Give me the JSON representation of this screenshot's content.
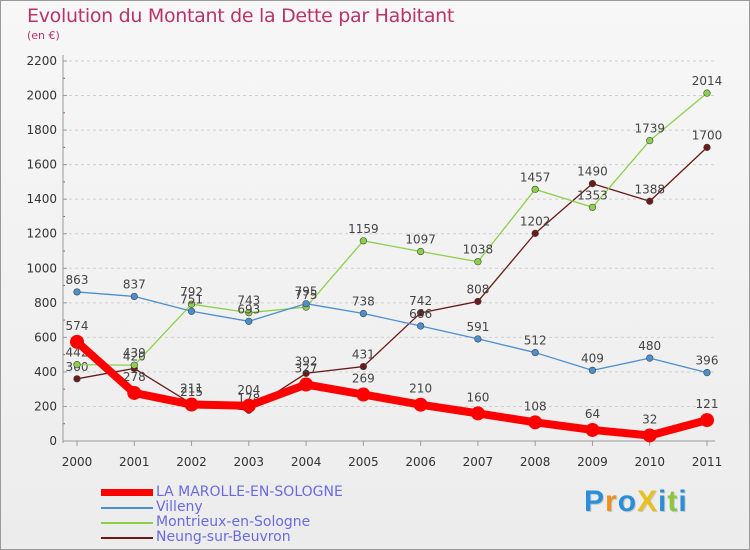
{
  "title": "Evolution du Montant de la Dette par Habitant",
  "subtitle": "(en €)",
  "brand": {
    "text": "ProXiti",
    "letters": [
      "P",
      "r",
      "o",
      "X",
      "i",
      "t",
      "i"
    ],
    "colors": [
      "#2a8fd8",
      "#f09020",
      "#2a8fd8",
      "#e8c020",
      "#2a8fd8",
      "#8cc63f",
      "#2a8fd8"
    ]
  },
  "chart_data": {
    "type": "line",
    "title": "Evolution du Montant de la Dette par Habitant",
    "subtitle": "(en €)",
    "xlabel": "",
    "ylabel": "",
    "x": [
      "2000",
      "2001",
      "2002",
      "2003",
      "2004",
      "2005",
      "2006",
      "2007",
      "2008",
      "2009",
      "2010",
      "2011"
    ],
    "ylim": [
      0,
      2200
    ],
    "yticks": [
      0,
      200,
      400,
      600,
      800,
      1000,
      1200,
      1400,
      1600,
      1800,
      2000,
      2200
    ],
    "legend_position": "bottom-left",
    "series": [
      {
        "name": "Neung-sur-Beuvron",
        "color": "#6b1a1a",
        "values": [
          360,
          420,
          215,
          178,
          392,
          431,
          742,
          808,
          1202,
          1490,
          1388,
          1700
        ]
      },
      {
        "name": "Montrieux-en-Sologne",
        "color": "#8cd04a",
        "values": [
          442,
          439,
          792,
          743,
          775,
          1159,
          1097,
          1038,
          1457,
          1353,
          1739,
          2014
        ]
      },
      {
        "name": "Villeny",
        "color": "#4b8fcf",
        "values": [
          863,
          837,
          751,
          693,
          795,
          738,
          666,
          591,
          512,
          409,
          480,
          396
        ]
      },
      {
        "name": "LA MAROLLE-EN-SOLOGNE",
        "color": "#ff0000",
        "values": [
          574,
          278,
          211,
          204,
          327,
          269,
          210,
          160,
          108,
          64,
          32,
          121
        ]
      }
    ]
  }
}
